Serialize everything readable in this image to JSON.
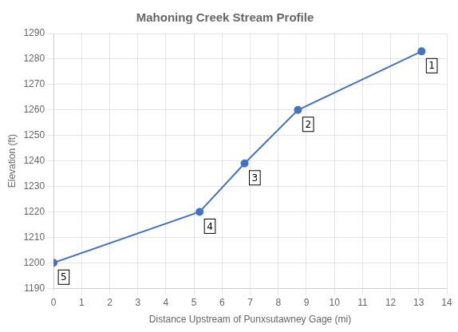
{
  "chart_data": {
    "type": "line",
    "title": "Mahoning Creek Stream Profile",
    "xlabel": "Distance Upstream of Punxsutawney Gage (mi)",
    "ylabel": "Elevation (ft)",
    "x": [
      0,
      5.2,
      6.8,
      8.7,
      13.1
    ],
    "values": [
      1200,
      1220,
      1239,
      1260,
      1283
    ],
    "color": "#4472C4",
    "marker": "circle",
    "xlim": [
      0,
      14
    ],
    "ylim": [
      1190,
      1290
    ],
    "xticks": [
      0,
      1,
      2,
      3,
      4,
      5,
      6,
      7,
      8,
      9,
      10,
      11,
      12,
      13,
      14
    ],
    "yticks": [
      1190,
      1200,
      1210,
      1220,
      1230,
      1240,
      1250,
      1260,
      1270,
      1280,
      1290
    ],
    "grid": true,
    "annotations": [
      {
        "text": "1",
        "x": 13.1,
        "y": 1283
      },
      {
        "text": "2",
        "x": 8.7,
        "y": 1260
      },
      {
        "text": "3",
        "x": 6.8,
        "y": 1239
      },
      {
        "text": "4",
        "x": 5.2,
        "y": 1220
      },
      {
        "text": "5",
        "x": 0,
        "y": 1200
      }
    ]
  }
}
